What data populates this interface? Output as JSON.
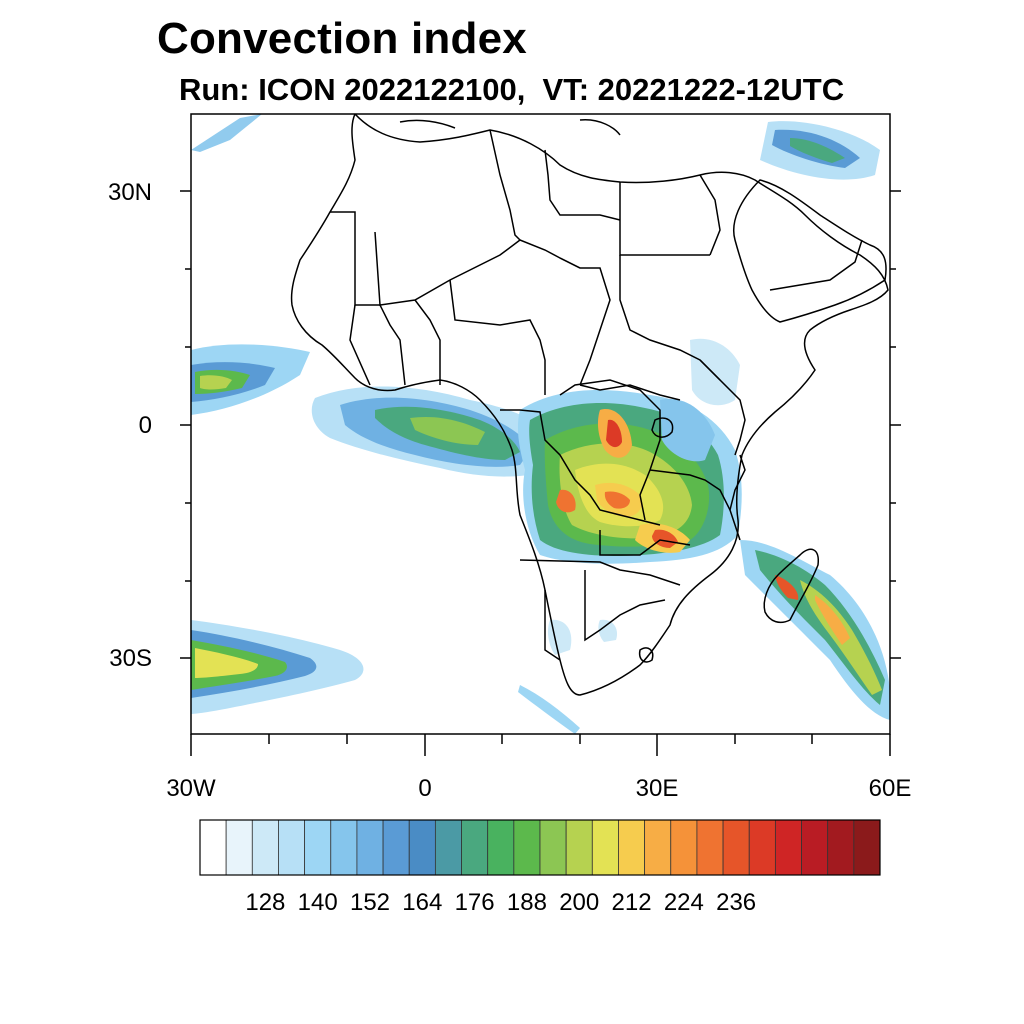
{
  "header": {
    "title": "Convection index",
    "subtitle": "Run: ICON 2022122100,  VT: 20221222-12UTC"
  },
  "axes": {
    "lat_labels": [
      "30N",
      "0",
      "30S"
    ],
    "lon_labels": [
      "30W",
      "0",
      "30E",
      "60E"
    ]
  },
  "colorbar": {
    "tick_labels": [
      "128",
      "140",
      "152",
      "164",
      "176",
      "188",
      "200",
      "212",
      "224",
      "236"
    ],
    "colors": [
      "#ffffff",
      "#e8f4fb",
      "#cde9f7",
      "#b7e0f6",
      "#9dd6f4",
      "#85c5ec",
      "#6fb1e3",
      "#5a9bd5",
      "#4a8cc5",
      "#4b9aa5",
      "#4aa87f",
      "#49b25f",
      "#5cb94c",
      "#8cc653",
      "#b6d250",
      "#e3e254",
      "#f6cc4e",
      "#f7ad45",
      "#f59239",
      "#ef7331",
      "#e65529",
      "#dc3a26",
      "#cf2525",
      "#b91c24",
      "#a21a1f",
      "#8b1a1b"
    ]
  },
  "map": {
    "extent": {
      "lon_min": -30,
      "lon_max": 60,
      "lat_min": -40,
      "lat_max": 40
    },
    "field": "Convection index"
  }
}
